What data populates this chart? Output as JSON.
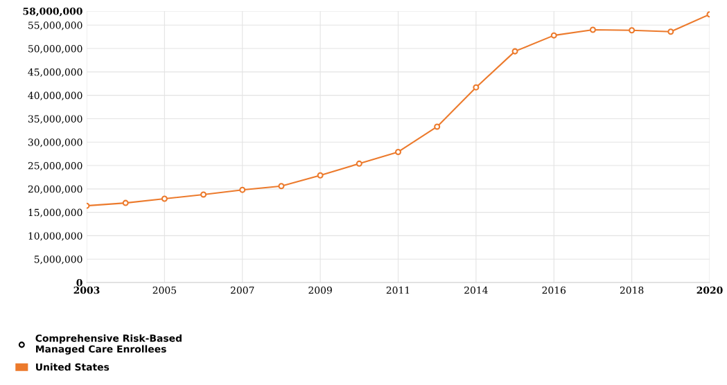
{
  "chart_data": {
    "type": "line",
    "categories": [
      "2003",
      null,
      "2005",
      null,
      "2007",
      null,
      "2009",
      null,
      "2011",
      null,
      "2014",
      null,
      "2016",
      null,
      "2018",
      null,
      "2020"
    ],
    "series": [
      {
        "name": "United States",
        "color": "#ec7a2c",
        "values": [
          16400000,
          17000000,
          17900000,
          18800000,
          19800000,
          20600000,
          22900000,
          25400000,
          27900000,
          33300000,
          41700000,
          49400000,
          52800000,
          54000000,
          53900000,
          53600000,
          57300000
        ]
      }
    ],
    "legend_title": "Comprehensive Risk-Based\nManaged Care Enrollees",
    "ylim": [
      0,
      58000000
    ],
    "yticks": [
      0,
      {
        "value": 5000000,
        "label": "5,000,000"
      },
      {
        "value": 10000000,
        "label": "10,000,000"
      },
      {
        "value": 15000000,
        "label": "15,000,000"
      },
      {
        "value": 20000000,
        "label": "20,000,000"
      },
      {
        "value": 25000000,
        "label": "25,000,000"
      },
      {
        "value": 30000000,
        "label": "30,000,000"
      },
      {
        "value": 35000000,
        "label": "35,000,000"
      },
      {
        "value": 40000000,
        "label": "40,000,000"
      },
      {
        "value": 45000000,
        "label": "45,000,000"
      },
      {
        "value": 50000000,
        "label": "50,000,000"
      },
      {
        "value": 55000000,
        "label": "55,000,000"
      },
      {
        "value": 58000000,
        "label": "58,000,000"
      }
    ],
    "grid": true,
    "legend": "bottom left",
    "marker": "circle",
    "line_style": "solid"
  }
}
